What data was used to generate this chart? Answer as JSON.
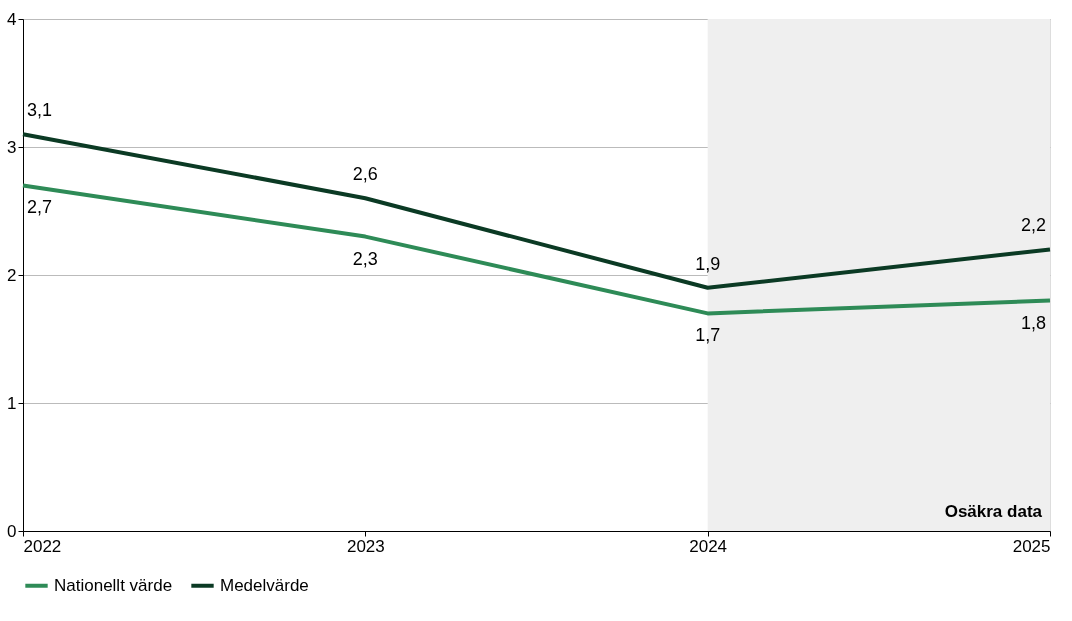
{
  "chart_data": {
    "type": "line",
    "x": [
      2022,
      2023,
      2024,
      2025
    ],
    "xlim": [
      2022,
      2025
    ],
    "xticks": [
      2022,
      2023,
      2024,
      2025
    ],
    "ylim": [
      0,
      4
    ],
    "yticks": [
      0,
      1,
      2,
      3,
      4
    ],
    "grid": "y",
    "legend": "bottom",
    "marker": "none",
    "line_style": "solid",
    "series": [
      {
        "name": "Nationellt värde",
        "color": "#2e8b57",
        "values": [
          2.7,
          2.3,
          1.7,
          1.8
        ],
        "value_labels": [
          "2,7",
          "2,3",
          "1,7",
          "1,8"
        ]
      },
      {
        "name": "Medelvärde",
        "color": "#0b3a24",
        "values": [
          3.1,
          2.6,
          1.9,
          2.2
        ],
        "value_labels": [
          "3,1",
          "2,6",
          "1,9",
          "2,2"
        ]
      }
    ],
    "bands": [
      {
        "axis": "x",
        "from": 2024,
        "to": 2025,
        "label": "Osäkra data",
        "color": "#efefef"
      }
    ]
  }
}
